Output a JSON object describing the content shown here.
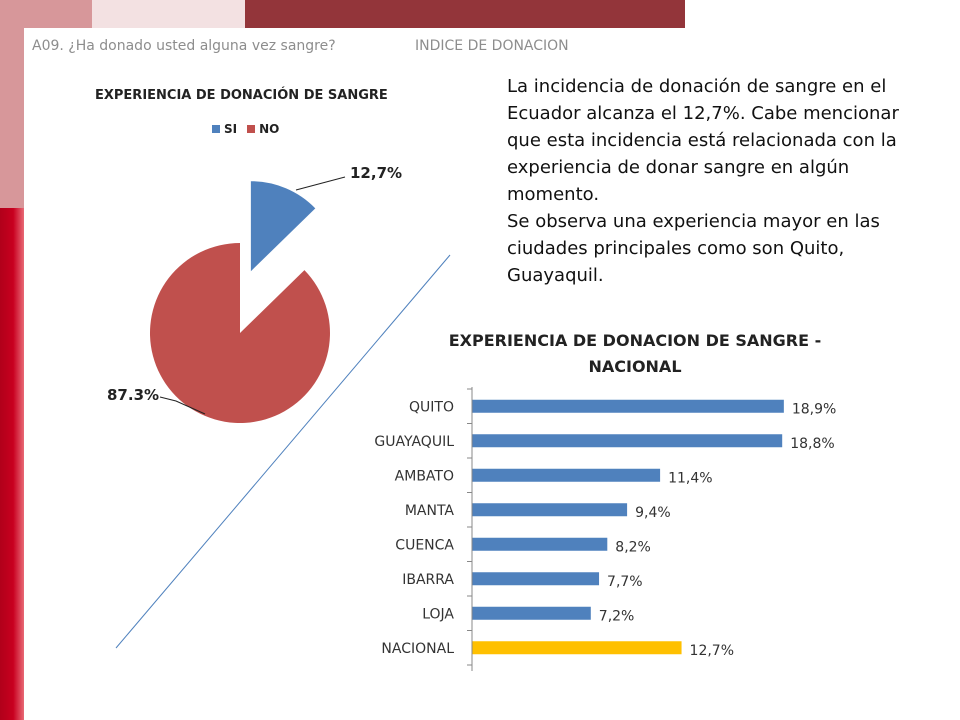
{
  "header": {
    "question": "A09. ¿Ha donado usted alguna vez sangre?",
    "section": "INDICE DE DONACION"
  },
  "description": {
    "paragraph1": "La incidencia de donación de sangre en el Ecuador alcanza el 12,7%. Cabe mencionar que esta incidencia está relacionada con la experiencia de donar sangre en algún momento.",
    "paragraph2": "Se observa una experiencia mayor en las ciudades principales como son Quito, Guayaquil."
  },
  "colors": {
    "si": "#4f81bd",
    "no": "#c0504d",
    "bar": "#4f81bd",
    "highlight": "#ffc000",
    "guide_line": "#4f81bd"
  },
  "chart_data": [
    {
      "type": "pie",
      "title": "EXPERIENCIA DE DONACIÓN DE SANGRE",
      "legend": [
        "SI",
        "NO"
      ],
      "legend_position": "top",
      "slices": [
        {
          "label": "SI",
          "value": 12.7,
          "data_label": "12,7%",
          "exploded": true
        },
        {
          "label": "NO",
          "value": 87.3,
          "data_label": "87.3%",
          "exploded": false
        }
      ]
    },
    {
      "type": "bar",
      "orientation": "horizontal",
      "title_line1": "EXPERIENCIA DE DONACION DE SANGRE -",
      "title_line2": "NACIONAL",
      "categories": [
        "QUITO",
        "GUAYAQUIL",
        "AMBATO",
        "MANTA",
        "CUENCA",
        "IBARRA",
        "LOJA",
        "NACIONAL"
      ],
      "values": [
        18.9,
        18.8,
        11.4,
        9.4,
        8.2,
        7.7,
        7.2,
        12.7
      ],
      "data_labels": [
        "18,9%",
        "18,8%",
        "11,4%",
        "9,4%",
        "8,2%",
        "7,7%",
        "7,2%",
        "12,7%"
      ],
      "highlight_category": "NACIONAL",
      "xlim": [
        0,
        20
      ]
    }
  ]
}
